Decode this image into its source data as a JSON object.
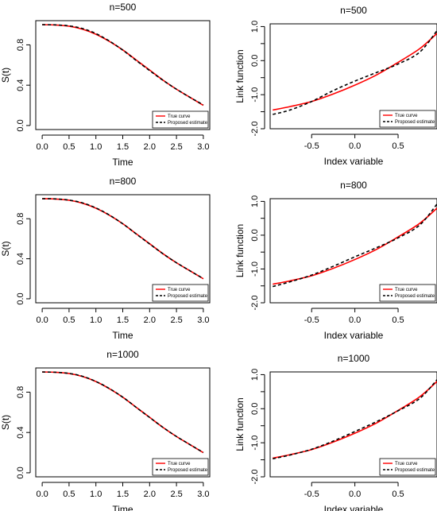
{
  "colors": {
    "true_curve": "#ff0000",
    "estimate": "#000000",
    "axis": "#000000"
  },
  "chart_data": [
    {
      "type": "line",
      "title": "n=500",
      "xlabel": "Time",
      "ylabel": "S(t)",
      "xlim": [
        -0.12,
        3.12
      ],
      "ylim": [
        -0.04,
        1.04
      ],
      "xticks": [
        "0.0",
        "0.5",
        "1.0",
        "1.5",
        "2.0",
        "2.5",
        "3.0"
      ],
      "xtick_values": [
        0,
        0.5,
        1,
        1.5,
        2,
        2.5,
        3
      ],
      "yticks": [
        "0.0",
        "0.4",
        "0.8"
      ],
      "ytick_values": [
        0,
        0.4,
        0.8
      ],
      "legend": {
        "position": "bottom-right",
        "entries": [
          "True curve",
          "Proposed estimate"
        ]
      },
      "x": [
        0,
        0.25,
        0.5,
        0.75,
        1,
        1.25,
        1.5,
        1.75,
        2,
        2.25,
        2.5,
        2.75,
        3
      ],
      "series": [
        {
          "name": "True curve",
          "style": "solid",
          "color": "#ff0000",
          "values": [
            1.0,
            0.997,
            0.985,
            0.955,
            0.905,
            0.835,
            0.75,
            0.65,
            0.55,
            0.45,
            0.36,
            0.28,
            0.2
          ]
        },
        {
          "name": "Proposed estimate",
          "style": "dashed",
          "color": "#000000",
          "values": [
            1.0,
            0.998,
            0.988,
            0.962,
            0.912,
            0.838,
            0.748,
            0.645,
            0.545,
            0.448,
            0.36,
            0.28,
            0.205
          ]
        }
      ]
    },
    {
      "type": "line",
      "title": "n=500",
      "xlabel": "Index variable",
      "ylabel": "Link function",
      "xlim": [
        -0.98,
        0.95
      ],
      "ylim": [
        -2.0,
        1.08
      ],
      "xticks": [
        "-0.5",
        "0.0",
        "0.5"
      ],
      "xtick_values": [
        -0.5,
        0,
        0.5
      ],
      "yticks": [
        "-2.0",
        "-1.0",
        "0.0",
        "1.0"
      ],
      "ytick_values": [
        -2,
        -1,
        0,
        1
      ],
      "yticks_minor": [
        -1.5,
        -0.5,
        0.5
      ],
      "legend": {
        "position": "bottom-right",
        "entries": [
          "True curve",
          "Proposed estimate"
        ]
      },
      "x": [
        -0.95,
        -0.75,
        -0.5,
        -0.25,
        0,
        0.25,
        0.5,
        0.75,
        0.95
      ],
      "series": [
        {
          "name": "True curve",
          "style": "solid",
          "color": "#ff0000",
          "values": [
            -1.45,
            -1.35,
            -1.2,
            -0.98,
            -0.72,
            -0.42,
            -0.05,
            0.35,
            0.8
          ]
        },
        {
          "name": "Proposed estimate",
          "style": "dashed",
          "color": "#000000",
          "values": [
            -1.58,
            -1.45,
            -1.2,
            -0.88,
            -0.6,
            -0.35,
            -0.1,
            0.25,
            0.88
          ]
        }
      ]
    },
    {
      "type": "line",
      "title": "n=800",
      "xlabel": "Time",
      "ylabel": "S(t)",
      "xlim": [
        -0.12,
        3.12
      ],
      "ylim": [
        -0.04,
        1.04
      ],
      "xticks": [
        "0.0",
        "0.5",
        "1.0",
        "1.5",
        "2.0",
        "2.5",
        "3.0"
      ],
      "xtick_values": [
        0,
        0.5,
        1,
        1.5,
        2,
        2.5,
        3
      ],
      "yticks": [
        "0.0",
        "0.4",
        "0.8"
      ],
      "ytick_values": [
        0,
        0.4,
        0.8
      ],
      "legend": {
        "position": "bottom-right",
        "entries": [
          "True curve",
          "Proposed estimate"
        ]
      },
      "x": [
        0,
        0.25,
        0.5,
        0.75,
        1,
        1.25,
        1.5,
        1.75,
        2,
        2.25,
        2.5,
        2.75,
        3
      ],
      "series": [
        {
          "name": "True curve",
          "style": "solid",
          "color": "#ff0000",
          "values": [
            1.0,
            0.997,
            0.985,
            0.955,
            0.905,
            0.835,
            0.75,
            0.65,
            0.55,
            0.45,
            0.36,
            0.28,
            0.2
          ]
        },
        {
          "name": "Proposed estimate",
          "style": "dashed",
          "color": "#000000",
          "values": [
            1.0,
            0.998,
            0.986,
            0.958,
            0.908,
            0.837,
            0.749,
            0.648,
            0.548,
            0.449,
            0.36,
            0.28,
            0.202
          ]
        }
      ]
    },
    {
      "type": "line",
      "title": "n=800",
      "xlabel": "Index variable",
      "ylabel": "Link function",
      "xlim": [
        -0.98,
        0.95
      ],
      "ylim": [
        -2.0,
        1.08
      ],
      "xticks": [
        "-0.5",
        "0.0",
        "0.5"
      ],
      "xtick_values": [
        -0.5,
        0,
        0.5
      ],
      "yticks": [
        "-2.0",
        "-1.0",
        "0.0",
        "1.0"
      ],
      "ytick_values": [
        -2,
        -1,
        0,
        1
      ],
      "yticks_minor": [
        -1.5,
        -0.5,
        0.5
      ],
      "legend": {
        "position": "bottom-right",
        "entries": [
          "True curve",
          "Proposed estimate"
        ]
      },
      "x": [
        -0.95,
        -0.75,
        -0.5,
        -0.25,
        0,
        0.25,
        0.5,
        0.75,
        0.95
      ],
      "series": [
        {
          "name": "True curve",
          "style": "solid",
          "color": "#ff0000",
          "values": [
            -1.45,
            -1.35,
            -1.2,
            -0.98,
            -0.72,
            -0.42,
            -0.05,
            0.35,
            0.8
          ]
        },
        {
          "name": "Proposed estimate",
          "style": "dashed",
          "color": "#000000",
          "values": [
            -1.52,
            -1.38,
            -1.18,
            -0.92,
            -0.64,
            -0.37,
            -0.08,
            0.3,
            0.92
          ]
        }
      ]
    },
    {
      "type": "line",
      "title": "n=1000",
      "xlabel": "Time",
      "ylabel": "S(t)",
      "xlim": [
        -0.12,
        3.12
      ],
      "ylim": [
        -0.04,
        1.04
      ],
      "xticks": [
        "0.0",
        "0.5",
        "1.0",
        "1.5",
        "2.0",
        "2.5",
        "3.0"
      ],
      "xtick_values": [
        0,
        0.5,
        1,
        1.5,
        2,
        2.5,
        3
      ],
      "yticks": [
        "0.0",
        "0.4",
        "0.8"
      ],
      "ytick_values": [
        0,
        0.4,
        0.8
      ],
      "legend": {
        "position": "bottom-right",
        "entries": [
          "True curve",
          "Proposed estimate"
        ]
      },
      "x": [
        0,
        0.25,
        0.5,
        0.75,
        1,
        1.25,
        1.5,
        1.75,
        2,
        2.25,
        2.5,
        2.75,
        3
      ],
      "series": [
        {
          "name": "True curve",
          "style": "solid",
          "color": "#ff0000",
          "values": [
            1.0,
            0.997,
            0.985,
            0.955,
            0.905,
            0.835,
            0.75,
            0.65,
            0.55,
            0.45,
            0.36,
            0.28,
            0.2
          ]
        },
        {
          "name": "Proposed estimate",
          "style": "dashed",
          "color": "#000000",
          "values": [
            1.0,
            0.997,
            0.986,
            0.957,
            0.906,
            0.836,
            0.75,
            0.649,
            0.549,
            0.45,
            0.36,
            0.28,
            0.201
          ]
        }
      ]
    },
    {
      "type": "line",
      "title": "n=1000",
      "xlabel": "Index variable",
      "ylabel": "Link function",
      "xlim": [
        -0.98,
        0.95
      ],
      "ylim": [
        -2.0,
        1.08
      ],
      "xticks": [
        "-0.5",
        "0.0",
        "0.5"
      ],
      "xtick_values": [
        -0.5,
        0,
        0.5
      ],
      "yticks": [
        "-2.0",
        "-1.0",
        "0.0",
        "1.0"
      ],
      "ytick_values": [
        -2,
        -1,
        0,
        1
      ],
      "yticks_minor": [
        -1.5,
        -0.5,
        0.5
      ],
      "legend": {
        "position": "bottom-right",
        "entries": [
          "True curve",
          "Proposed estimate"
        ]
      },
      "x": [
        -0.95,
        -0.75,
        -0.5,
        -0.25,
        0,
        0.25,
        0.5,
        0.75,
        0.95
      ],
      "series": [
        {
          "name": "True curve",
          "style": "solid",
          "color": "#ff0000",
          "values": [
            -1.45,
            -1.35,
            -1.2,
            -0.98,
            -0.72,
            -0.42,
            -0.05,
            0.35,
            0.8
          ]
        },
        {
          "name": "Proposed estimate",
          "style": "dashed",
          "color": "#000000",
          "values": [
            -1.47,
            -1.36,
            -1.19,
            -0.95,
            -0.67,
            -0.38,
            -0.06,
            0.3,
            0.85
          ]
        }
      ]
    }
  ]
}
